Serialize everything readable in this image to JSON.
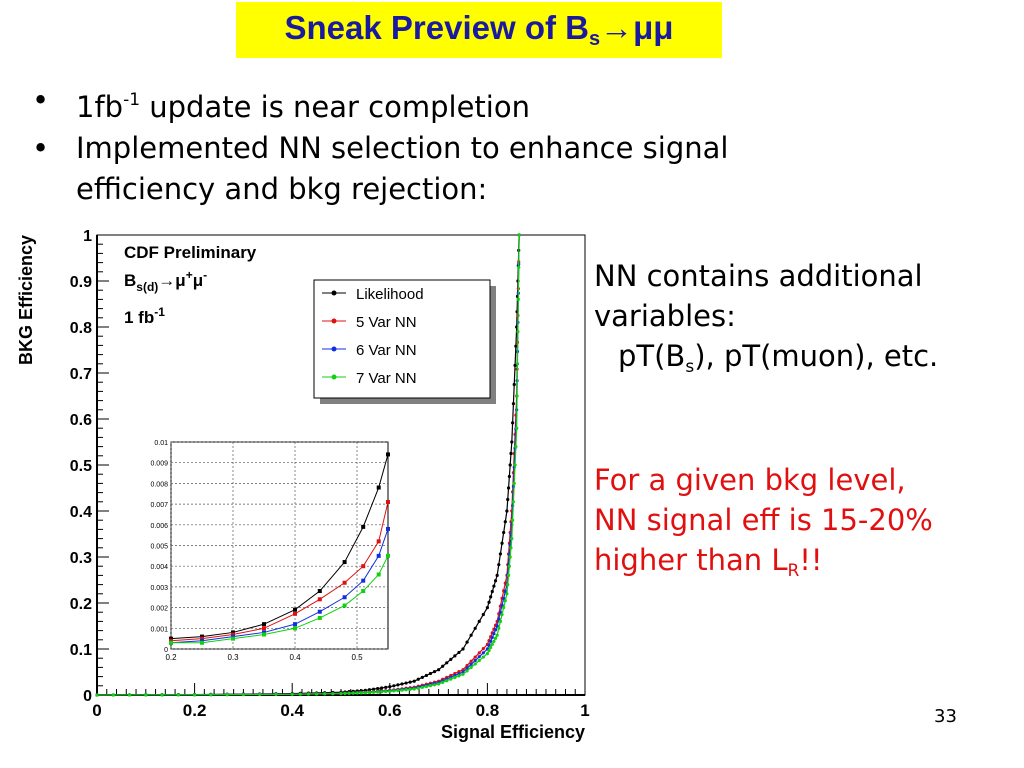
{
  "slide": {
    "title_main": "Sneak Preview of B",
    "title_sub": "s",
    "title_arrow": "→",
    "title_tail": "μμ",
    "bullet_char": "•",
    "bullet1_pre": "1fb",
    "bullet1_sup": "-1",
    "bullet1_post": " update is near completion",
    "bullet2_line1": "Implemented NN selection to enhance signal",
    "bullet2_line2": "efficiency and bkg rejection:",
    "note_line1": "NN contains additional",
    "note_line2": "variables:",
    "note_line3_a": "pT(B",
    "note_line3_sub": "s",
    "note_line3_b": "), pT(muon), etc.",
    "red_line1": "For a given bkg level,",
    "red_line2": "NN signal eff is 15-20%",
    "red_line3_a": "higher than L",
    "red_line3_sub": "R",
    "red_line3_b": "!!",
    "page_number": "33"
  },
  "chart_data": [
    {
      "type": "line",
      "xlabel": "Signal Efficiency",
      "ylabel": "BKG Efficiency",
      "xlim": [
        0,
        1
      ],
      "ylim": [
        0,
        1
      ],
      "xticks": [
        "0",
        "0.2",
        "0.4",
        "0.6",
        "0.8",
        "1"
      ],
      "yticks": [
        "0",
        "0.1",
        "0.2",
        "0.3",
        "0.4",
        "0.5",
        "0.6",
        "0.7",
        "0.8",
        "0.9",
        "1"
      ],
      "annotations": [
        "CDF Preliminary",
        "B",
        "s(d)",
        "→μ",
        "+",
        "μ",
        "-",
        "1 fb",
        "-1"
      ],
      "legend_position": "top-right",
      "series": [
        {
          "name": "Likelihood",
          "color": "#000000",
          "x": [
            0.0,
            0.2,
            0.4,
            0.5,
            0.55,
            0.6,
            0.65,
            0.7,
            0.75,
            0.8,
            0.82,
            0.84,
            0.85,
            0.86,
            0.865
          ],
          "y": [
            0.0,
            0.001,
            0.003,
            0.006,
            0.01,
            0.018,
            0.03,
            0.055,
            0.1,
            0.19,
            0.26,
            0.4,
            0.55,
            0.8,
            1.0
          ]
        },
        {
          "name": "5 Var NN",
          "color": "#e01010",
          "x": [
            0.0,
            0.2,
            0.4,
            0.5,
            0.55,
            0.6,
            0.65,
            0.7,
            0.75,
            0.8,
            0.82,
            0.84,
            0.85,
            0.86,
            0.865
          ],
          "y": [
            0.0,
            0.0005,
            0.002,
            0.004,
            0.006,
            0.01,
            0.017,
            0.03,
            0.055,
            0.11,
            0.16,
            0.26,
            0.4,
            0.65,
            1.0
          ]
        },
        {
          "name": "6 Var NN",
          "color": "#1030e0",
          "x": [
            0.0,
            0.2,
            0.4,
            0.5,
            0.55,
            0.6,
            0.65,
            0.7,
            0.75,
            0.8,
            0.82,
            0.84,
            0.85,
            0.86,
            0.865
          ],
          "y": [
            0.0,
            0.0005,
            0.0018,
            0.0035,
            0.0055,
            0.009,
            0.015,
            0.027,
            0.05,
            0.1,
            0.15,
            0.24,
            0.37,
            0.62,
            1.0
          ]
        },
        {
          "name": "7 Var NN",
          "color": "#10d010",
          "x": [
            0.0,
            0.2,
            0.4,
            0.5,
            0.55,
            0.6,
            0.65,
            0.7,
            0.75,
            0.8,
            0.82,
            0.84,
            0.85,
            0.86,
            0.865
          ],
          "y": [
            0.0,
            0.0004,
            0.0015,
            0.003,
            0.005,
            0.008,
            0.013,
            0.024,
            0.045,
            0.09,
            0.13,
            0.22,
            0.34,
            0.58,
            1.0
          ]
        }
      ]
    },
    {
      "type": "line",
      "xlim": [
        0.2,
        0.55
      ],
      "ylim": [
        0,
        0.01
      ],
      "grid": true,
      "xticks": [
        "0.2",
        "0.3",
        "0.4",
        "0.5"
      ],
      "yticks": [
        "0",
        "0.001",
        "0.002",
        "0.003",
        "0.004",
        "0.005",
        "0.006",
        "0.007",
        "0.008",
        "0.009",
        "0.01"
      ],
      "series": [
        {
          "name": "Likelihood",
          "color": "#000000",
          "x": [
            0.2,
            0.25,
            0.3,
            0.35,
            0.4,
            0.44,
            0.48,
            0.51,
            0.535,
            0.55
          ],
          "y": [
            0.0005,
            0.0006,
            0.0008,
            0.0012,
            0.0019,
            0.0028,
            0.0042,
            0.0059,
            0.0078,
            0.0094
          ]
        },
        {
          "name": "5 Var NN",
          "color": "#e01010",
          "x": [
            0.2,
            0.25,
            0.3,
            0.35,
            0.4,
            0.44,
            0.48,
            0.51,
            0.535,
            0.55
          ],
          "y": [
            0.0004,
            0.0005,
            0.0007,
            0.001,
            0.0017,
            0.0024,
            0.0032,
            0.004,
            0.0052,
            0.0071
          ]
        },
        {
          "name": "6 Var NN",
          "color": "#1030e0",
          "x": [
            0.2,
            0.25,
            0.3,
            0.35,
            0.4,
            0.44,
            0.48,
            0.51,
            0.535,
            0.55
          ],
          "y": [
            0.0003,
            0.0004,
            0.0006,
            0.0008,
            0.0012,
            0.0018,
            0.0025,
            0.0033,
            0.0045,
            0.0058
          ]
        },
        {
          "name": "7 Var NN",
          "color": "#10d010",
          "x": [
            0.2,
            0.25,
            0.3,
            0.35,
            0.4,
            0.44,
            0.48,
            0.51,
            0.535,
            0.55
          ],
          "y": [
            0.0003,
            0.0003,
            0.0005,
            0.0007,
            0.001,
            0.0015,
            0.0021,
            0.0028,
            0.0036,
            0.0045
          ]
        }
      ]
    }
  ]
}
